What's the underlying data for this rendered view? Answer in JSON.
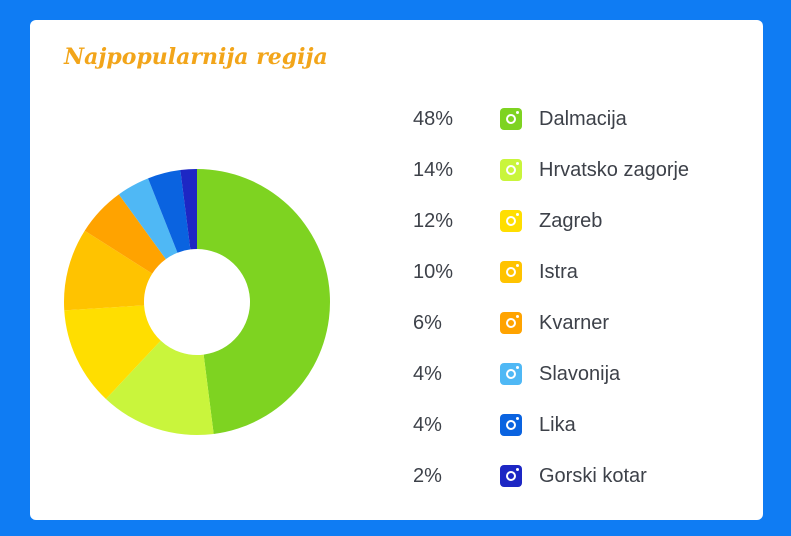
{
  "chart_data": {
    "type": "pie",
    "title": "Najpopularnija regija",
    "unit": "%",
    "categories": [
      "Dalmacija",
      "Hrvatsko zagorje",
      "Zagreb",
      "Istra",
      "Kvarner",
      "Slavonija",
      "Lika",
      "Gorski kotar"
    ],
    "values": [
      48,
      14,
      12,
      10,
      6,
      4,
      4,
      2
    ],
    "value_labels": [
      "48%",
      "14%",
      "12%",
      "10%",
      "6%",
      "4%",
      "4%",
      "2%"
    ],
    "colors": [
      "#7ed321",
      "#c9f53c",
      "#ffde00",
      "#ffc300",
      "#ffa300",
      "#4fb8f5",
      "#0a63e0",
      "#1d27c4"
    ],
    "legend_position": "right"
  }
}
